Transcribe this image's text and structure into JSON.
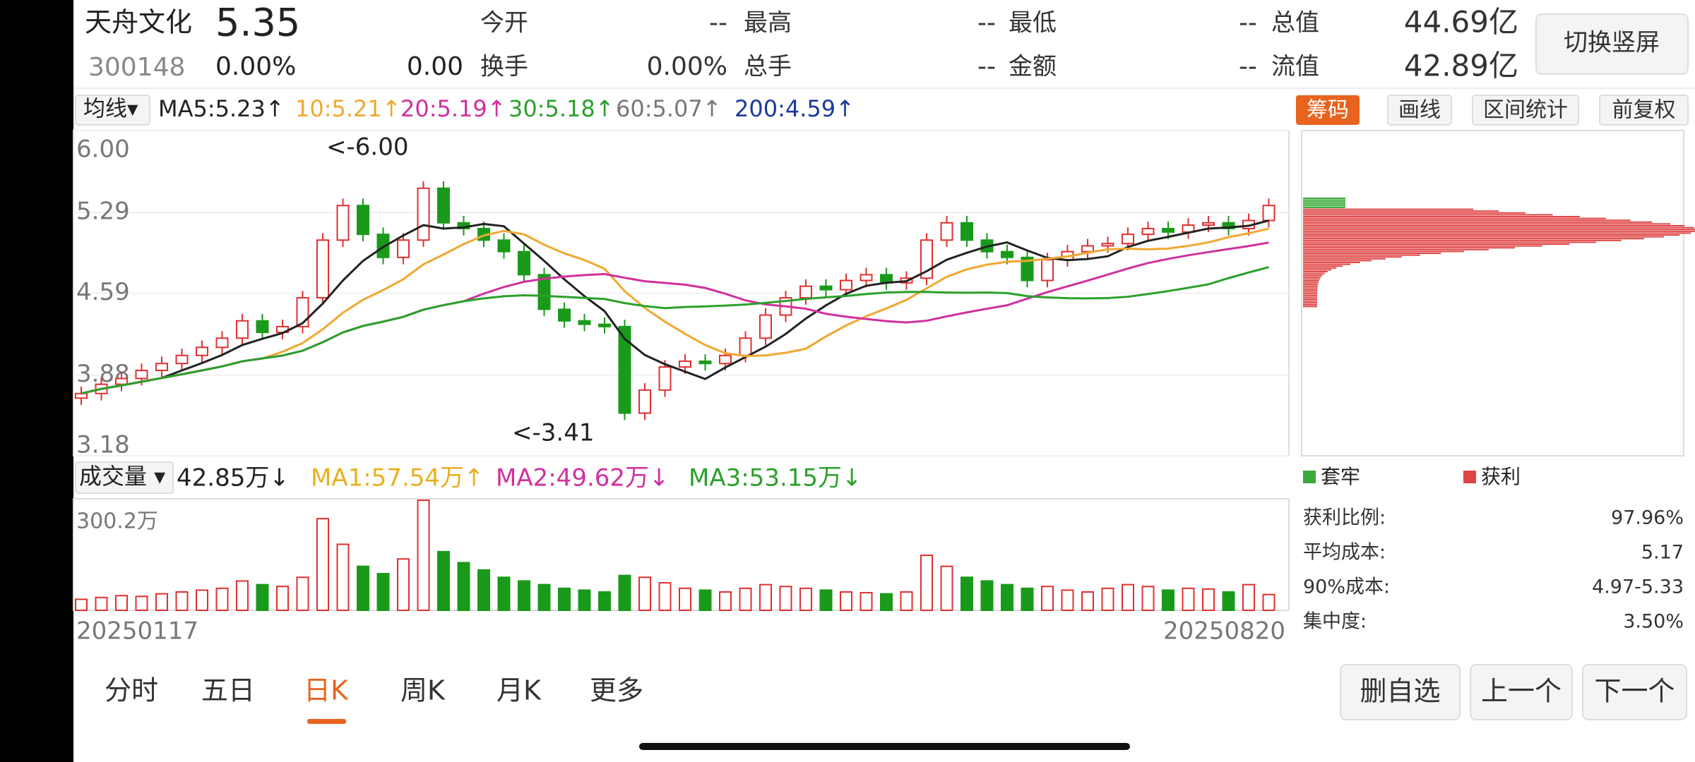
{
  "header": {
    "name": "天舟文化",
    "price": "5.35",
    "code": "300148",
    "change_pct": "0.00%",
    "change": "0.00",
    "fields": [
      {
        "label": "今开",
        "value": "--"
      },
      {
        "label": "最高",
        "value": "--"
      },
      {
        "label": "最低",
        "value": "--"
      },
      {
        "label": "总值",
        "value": "44.69亿"
      },
      {
        "label": "换手",
        "value": "0.00%"
      },
      {
        "label": "总手",
        "value": "--"
      },
      {
        "label": "金额",
        "value": "--"
      },
      {
        "label": "流值",
        "value": "42.89亿"
      }
    ],
    "switch_button": "切换竖屏"
  },
  "ma_bar": {
    "selector": "均线▾",
    "items": [
      "MA5:5.23↑",
      "10:5.21↑",
      "20:5.19↑",
      "30:5.18↑",
      "60:5.07↑",
      "200:4.59↑"
    ]
  },
  "tools": [
    "筹码",
    "画线",
    "区间统计",
    "前复权"
  ],
  "kline": {
    "ylim": [
      3.18,
      6.0
    ],
    "yticks": [
      "6.00",
      "5.29",
      "4.59",
      "3.88",
      "3.18"
    ],
    "annotations": {
      "high": "<-6.00",
      "low": "<-3.41"
    },
    "closes": [
      3.72,
      3.8,
      3.85,
      3.92,
      3.98,
      4.05,
      4.12,
      4.2,
      4.35,
      4.25,
      4.3,
      4.55,
      5.05,
      5.35,
      5.1,
      4.9,
      5.05,
      5.5,
      5.2,
      5.15,
      5.05,
      4.95,
      4.75,
      4.45,
      4.35,
      4.32,
      4.3,
      3.55,
      3.75,
      3.95,
      4.0,
      3.98,
      4.05,
      4.2,
      4.4,
      4.55,
      4.65,
      4.62,
      4.7,
      4.75,
      4.68,
      4.72,
      5.05,
      5.2,
      5.05,
      4.95,
      4.9,
      4.7,
      4.88,
      4.95,
      5.0,
      5.02,
      5.1,
      5.15,
      5.12,
      5.18,
      5.2,
      5.15,
      5.22,
      5.35
    ]
  },
  "volume": {
    "selector": "成交量 ▾",
    "items": [
      "42.85万↓",
      "MA1:57.54万↑",
      "MA2:49.62万↓",
      "MA3:53.15万↓"
    ],
    "max_label": "300.2万",
    "values": [
      30,
      35,
      40,
      38,
      45,
      50,
      55,
      60,
      80,
      70,
      65,
      90,
      250,
      180,
      120,
      100,
      140,
      300,
      160,
      130,
      110,
      90,
      80,
      70,
      60,
      55,
      50,
      95,
      90,
      75,
      60,
      55,
      50,
      60,
      70,
      65,
      60,
      55,
      50,
      48,
      45,
      50,
      150,
      120,
      90,
      80,
      70,
      60,
      65,
      55,
      50,
      60,
      70,
      65,
      55,
      60,
      58,
      50,
      70,
      43
    ]
  },
  "dates": [
    "20250117",
    "20250820"
  ],
  "chips": {
    "legend": [
      "套牢",
      "获利"
    ],
    "stats": [
      {
        "label": "获利比例:",
        "value": "97.96%"
      },
      {
        "label": "平均成本:",
        "value": "5.17"
      },
      {
        "label": "90%成本:",
        "value": "4.97-5.33"
      },
      {
        "label": "集中度:",
        "value": "3.50%"
      }
    ]
  },
  "tabs": [
    "分时",
    "五日",
    "日K",
    "周K",
    "月K",
    "更多"
  ],
  "buttons": [
    "删自选",
    "上一个",
    "下一个"
  ]
}
